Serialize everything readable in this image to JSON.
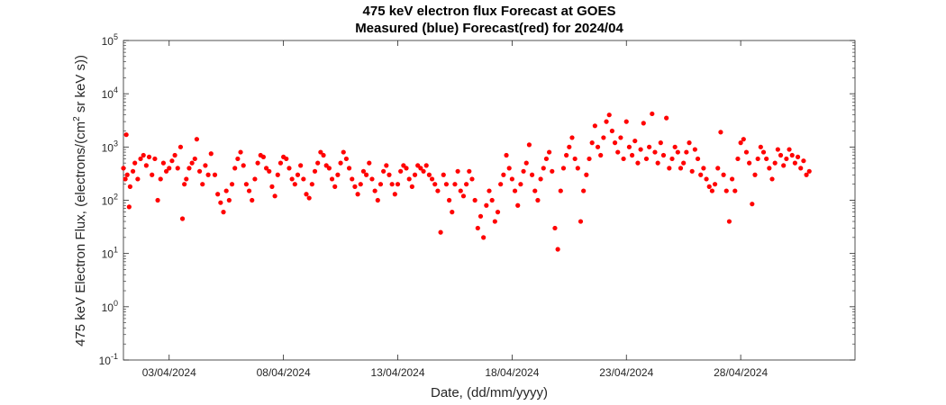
{
  "chart_data": {
    "type": "scatter",
    "title": "475 keV electron flux Forecast at GOES",
    "subtitle": "Measured (blue) Forecast(red) for 2024/04",
    "xlabel": "Date, (dd/mm/yyyy)",
    "ylabel_parts": [
      "475 keV Electron Flux, (electrons/(cm",
      "2",
      " sr keV s))"
    ],
    "yscale": "log",
    "ylim": [
      0.1,
      100000
    ],
    "xlim": [
      "2024-04-01",
      "2024-05-03"
    ],
    "x_ticks": [
      "2024-04-03",
      "2024-04-08",
      "2024-04-13",
      "2024-04-18",
      "2024-04-23",
      "2024-04-28"
    ],
    "x_tick_labels": [
      "03/04/2024",
      "08/04/2024",
      "13/04/2024",
      "18/04/2024",
      "23/04/2024",
      "28/04/2024"
    ],
    "y_ticks": [
      {
        "value": 0.1,
        "base": "10",
        "exp": "-1"
      },
      {
        "value": 1,
        "base": "10",
        "exp": "0"
      },
      {
        "value": 10,
        "base": "10",
        "exp": "1"
      },
      {
        "value": 100,
        "base": "10",
        "exp": "2"
      },
      {
        "value": 1000,
        "base": "10",
        "exp": "3"
      },
      {
        "value": 10000,
        "base": "10",
        "exp": "4"
      },
      {
        "value": 100000,
        "base": "10",
        "exp": "5"
      }
    ],
    "grid": false,
    "series": [
      {
        "color": "#ff0000",
        "points": [
          [
            "2024-04-01T00:00",
            400
          ],
          [
            "2024-04-01T02:00",
            250
          ],
          [
            "2024-04-01T03:00",
            1700
          ],
          [
            "2024-04-01T04:00",
            300
          ],
          [
            "2024-04-01T06:00",
            75
          ],
          [
            "2024-04-01T07:00",
            180
          ],
          [
            "2024-04-01T10:00",
            350
          ],
          [
            "2024-04-01T12:00",
            500
          ],
          [
            "2024-04-01T15:00",
            250
          ],
          [
            "2024-04-01T18:00",
            600
          ],
          [
            "2024-04-01T21:00",
            700
          ],
          [
            "2024-04-02T00:00",
            450
          ],
          [
            "2024-04-02T03:00",
            650
          ],
          [
            "2024-04-02T06:00",
            300
          ],
          [
            "2024-04-02T09:00",
            600
          ],
          [
            "2024-04-02T12:00",
            100
          ],
          [
            "2024-04-02T15:00",
            250
          ],
          [
            "2024-04-02T18:00",
            500
          ],
          [
            "2024-04-02T21:00",
            350
          ],
          [
            "2024-04-03T00:00",
            400
          ],
          [
            "2024-04-03T03:00",
            550
          ],
          [
            "2024-04-03T06:00",
            700
          ],
          [
            "2024-04-03T09:00",
            400
          ],
          [
            "2024-04-03T12:00",
            1000
          ],
          [
            "2024-04-03T14:00",
            45
          ],
          [
            "2024-04-03T16:00",
            200
          ],
          [
            "2024-04-03T18:00",
            250
          ],
          [
            "2024-04-03T21:00",
            400
          ],
          [
            "2024-04-04T00:00",
            500
          ],
          [
            "2024-04-04T03:00",
            600
          ],
          [
            "2024-04-04T05:00",
            1400
          ],
          [
            "2024-04-04T08:00",
            350
          ],
          [
            "2024-04-04T11:00",
            200
          ],
          [
            "2024-04-04T14:00",
            450
          ],
          [
            "2024-04-04T17:00",
            300
          ],
          [
            "2024-04-04T20:00",
            750
          ],
          [
            "2024-04-05T00:00",
            300
          ],
          [
            "2024-04-05T03:00",
            130
          ],
          [
            "2024-04-05T06:00",
            90
          ],
          [
            "2024-04-05T09:00",
            60
          ],
          [
            "2024-04-05T12:00",
            150
          ],
          [
            "2024-04-05T15:00",
            100
          ],
          [
            "2024-04-05T18:00",
            200
          ],
          [
            "2024-04-05T21:00",
            400
          ],
          [
            "2024-04-06T00:00",
            600
          ],
          [
            "2024-04-06T03:00",
            800
          ],
          [
            "2024-04-06T06:00",
            450
          ],
          [
            "2024-04-06T09:00",
            200
          ],
          [
            "2024-04-06T12:00",
            150
          ],
          [
            "2024-04-06T15:00",
            100
          ],
          [
            "2024-04-06T18:00",
            250
          ],
          [
            "2024-04-06T21:00",
            500
          ],
          [
            "2024-04-07T00:00",
            700
          ],
          [
            "2024-04-07T03:00",
            650
          ],
          [
            "2024-04-07T06:00",
            400
          ],
          [
            "2024-04-07T09:00",
            350
          ],
          [
            "2024-04-07T12:00",
            180
          ],
          [
            "2024-04-07T15:00",
            120
          ],
          [
            "2024-04-07T18:00",
            300
          ],
          [
            "2024-04-07T21:00",
            500
          ],
          [
            "2024-04-08T00:00",
            650
          ],
          [
            "2024-04-08T03:00",
            600
          ],
          [
            "2024-04-08T06:00",
            400
          ],
          [
            "2024-04-08T09:00",
            250
          ],
          [
            "2024-04-08T12:00",
            200
          ],
          [
            "2024-04-08T15:00",
            300
          ],
          [
            "2024-04-08T18:00",
            450
          ],
          [
            "2024-04-08T21:00",
            250
          ],
          [
            "2024-04-09T00:00",
            130
          ],
          [
            "2024-04-09T03:00",
            110
          ],
          [
            "2024-04-09T06:00",
            200
          ],
          [
            "2024-04-09T09:00",
            350
          ],
          [
            "2024-04-09T12:00",
            500
          ],
          [
            "2024-04-09T15:00",
            800
          ],
          [
            "2024-04-09T18:00",
            700
          ],
          [
            "2024-04-09T21:00",
            450
          ],
          [
            "2024-04-10T00:00",
            400
          ],
          [
            "2024-04-10T03:00",
            250
          ],
          [
            "2024-04-10T06:00",
            180
          ],
          [
            "2024-04-10T09:00",
            300
          ],
          [
            "2024-04-10T12:00",
            500
          ],
          [
            "2024-04-10T15:00",
            800
          ],
          [
            "2024-04-10T18:00",
            600
          ],
          [
            "2024-04-10T21:00",
            400
          ],
          [
            "2024-04-11T00:00",
            250
          ],
          [
            "2024-04-11T03:00",
            180
          ],
          [
            "2024-04-11T06:00",
            130
          ],
          [
            "2024-04-11T09:00",
            200
          ],
          [
            "2024-04-11T12:00",
            350
          ],
          [
            "2024-04-11T15:00",
            300
          ],
          [
            "2024-04-11T18:00",
            500
          ],
          [
            "2024-04-11T21:00",
            250
          ],
          [
            "2024-04-12T00:00",
            150
          ],
          [
            "2024-04-12T03:00",
            100
          ],
          [
            "2024-04-12T06:00",
            200
          ],
          [
            "2024-04-12T09:00",
            350
          ],
          [
            "2024-04-12T12:00",
            450
          ],
          [
            "2024-04-12T15:00",
            300
          ],
          [
            "2024-04-12T18:00",
            200
          ],
          [
            "2024-04-12T21:00",
            130
          ],
          [
            "2024-04-13T00:00",
            200
          ],
          [
            "2024-04-13T03:00",
            350
          ],
          [
            "2024-04-13T06:00",
            450
          ],
          [
            "2024-04-13T09:00",
            400
          ],
          [
            "2024-04-13T12:00",
            250
          ],
          [
            "2024-04-13T15:00",
            180
          ],
          [
            "2024-04-13T18:00",
            300
          ],
          [
            "2024-04-13T21:00",
            450
          ],
          [
            "2024-04-14T00:00",
            400
          ],
          [
            "2024-04-14T03:00",
            350
          ],
          [
            "2024-04-14T06:00",
            450
          ],
          [
            "2024-04-14T09:00",
            300
          ],
          [
            "2024-04-14T12:00",
            250
          ],
          [
            "2024-04-14T15:00",
            200
          ],
          [
            "2024-04-14T18:00",
            150
          ],
          [
            "2024-04-14T21:00",
            25
          ],
          [
            "2024-04-15T00:00",
            300
          ],
          [
            "2024-04-15T03:00",
            200
          ],
          [
            "2024-04-15T06:00",
            100
          ],
          [
            "2024-04-15T09:00",
            60
          ],
          [
            "2024-04-15T12:00",
            200
          ],
          [
            "2024-04-15T15:00",
            350
          ],
          [
            "2024-04-15T18:00",
            150
          ],
          [
            "2024-04-15T21:00",
            120
          ],
          [
            "2024-04-16T00:00",
            200
          ],
          [
            "2024-04-16T03:00",
            350
          ],
          [
            "2024-04-16T06:00",
            250
          ],
          [
            "2024-04-16T09:00",
            100
          ],
          [
            "2024-04-16T12:00",
            30
          ],
          [
            "2024-04-16T15:00",
            50
          ],
          [
            "2024-04-16T18:00",
            20
          ],
          [
            "2024-04-16T21:00",
            80
          ],
          [
            "2024-04-17T00:00",
            150
          ],
          [
            "2024-04-17T03:00",
            100
          ],
          [
            "2024-04-17T06:00",
            40
          ],
          [
            "2024-04-17T09:00",
            60
          ],
          [
            "2024-04-17T12:00",
            200
          ],
          [
            "2024-04-17T15:00",
            300
          ],
          [
            "2024-04-17T18:00",
            700
          ],
          [
            "2024-04-17T21:00",
            400
          ],
          [
            "2024-04-18T00:00",
            250
          ],
          [
            "2024-04-18T03:00",
            150
          ],
          [
            "2024-04-18T06:00",
            80
          ],
          [
            "2024-04-18T09:00",
            200
          ],
          [
            "2024-04-18T12:00",
            350
          ],
          [
            "2024-04-18T15:00",
            500
          ],
          [
            "2024-04-18T18:00",
            1100
          ],
          [
            "2024-04-18T21:00",
            300
          ],
          [
            "2024-04-19T00:00",
            150
          ],
          [
            "2024-04-19T03:00",
            100
          ],
          [
            "2024-04-19T06:00",
            250
          ],
          [
            "2024-04-19T09:00",
            400
          ],
          [
            "2024-04-19T12:00",
            600
          ],
          [
            "2024-04-19T15:00",
            800
          ],
          [
            "2024-04-19T18:00",
            350
          ],
          [
            "2024-04-19T21:00",
            30
          ],
          [
            "2024-04-20T00:00",
            12
          ],
          [
            "2024-04-20T03:00",
            150
          ],
          [
            "2024-04-20T06:00",
            400
          ],
          [
            "2024-04-20T09:00",
            700
          ],
          [
            "2024-04-20T12:00",
            1000
          ],
          [
            "2024-04-20T15:00",
            1500
          ],
          [
            "2024-04-20T18:00",
            600
          ],
          [
            "2024-04-20T21:00",
            400
          ],
          [
            "2024-04-21T00:00",
            40
          ],
          [
            "2024-04-21T03:00",
            150
          ],
          [
            "2024-04-21T06:00",
            300
          ],
          [
            "2024-04-21T09:00",
            600
          ],
          [
            "2024-04-21T12:00",
            1200
          ],
          [
            "2024-04-21T15:00",
            2500
          ],
          [
            "2024-04-21T18:00",
            1000
          ],
          [
            "2024-04-21T21:00",
            700
          ],
          [
            "2024-04-22T00:00",
            1500
          ],
          [
            "2024-04-22T03:00",
            3000
          ],
          [
            "2024-04-22T06:00",
            4000
          ],
          [
            "2024-04-22T09:00",
            2000
          ],
          [
            "2024-04-22T12:00",
            1200
          ],
          [
            "2024-04-22T15:00",
            800
          ],
          [
            "2024-04-22T18:00",
            1500
          ],
          [
            "2024-04-22T21:00",
            600
          ],
          [
            "2024-04-23T00:00",
            3000
          ],
          [
            "2024-04-23T03:00",
            1000
          ],
          [
            "2024-04-23T06:00",
            700
          ],
          [
            "2024-04-23T09:00",
            1300
          ],
          [
            "2024-04-23T12:00",
            500
          ],
          [
            "2024-04-23T15:00",
            900
          ],
          [
            "2024-04-23T18:00",
            2800
          ],
          [
            "2024-04-23T21:00",
            600
          ],
          [
            "2024-04-24T00:00",
            1000
          ],
          [
            "2024-04-24T03:00",
            4200
          ],
          [
            "2024-04-24T06:00",
            800
          ],
          [
            "2024-04-24T09:00",
            500
          ],
          [
            "2024-04-24T12:00",
            1200
          ],
          [
            "2024-04-24T15:00",
            700
          ],
          [
            "2024-04-24T18:00",
            3500
          ],
          [
            "2024-04-24T21:00",
            400
          ],
          [
            "2024-04-25T00:00",
            600
          ],
          [
            "2024-04-25T03:00",
            1000
          ],
          [
            "2024-04-25T06:00",
            800
          ],
          [
            "2024-04-25T09:00",
            400
          ],
          [
            "2024-04-25T12:00",
            500
          ],
          [
            "2024-04-25T15:00",
            800
          ],
          [
            "2024-04-25T18:00",
            1200
          ],
          [
            "2024-04-25T21:00",
            350
          ],
          [
            "2024-04-26T00:00",
            900
          ],
          [
            "2024-04-26T03:00",
            600
          ],
          [
            "2024-04-26T06:00",
            300
          ],
          [
            "2024-04-26T09:00",
            400
          ],
          [
            "2024-04-26T12:00",
            250
          ],
          [
            "2024-04-26T15:00",
            180
          ],
          [
            "2024-04-26T18:00",
            150
          ],
          [
            "2024-04-26T21:00",
            200
          ],
          [
            "2024-04-27T00:00",
            400
          ],
          [
            "2024-04-27T03:00",
            1900
          ],
          [
            "2024-04-27T06:00",
            300
          ],
          [
            "2024-04-27T09:00",
            150
          ],
          [
            "2024-04-27T12:00",
            40
          ],
          [
            "2024-04-27T15:00",
            250
          ],
          [
            "2024-04-27T18:00",
            150
          ],
          [
            "2024-04-27T21:00",
            600
          ],
          [
            "2024-04-28T00:00",
            1200
          ],
          [
            "2024-04-28T03:00",
            1400
          ],
          [
            "2024-04-28T06:00",
            800
          ],
          [
            "2024-04-28T09:00",
            500
          ],
          [
            "2024-04-28T12:00",
            85
          ],
          [
            "2024-04-28T15:00",
            300
          ],
          [
            "2024-04-28T18:00",
            600
          ],
          [
            "2024-04-28T21:00",
            1000
          ],
          [
            "2024-04-29T00:00",
            800
          ],
          [
            "2024-04-29T03:00",
            600
          ],
          [
            "2024-04-29T06:00",
            400
          ],
          [
            "2024-04-29T09:00",
            250
          ],
          [
            "2024-04-29T12:00",
            500
          ],
          [
            "2024-04-29T15:00",
            900
          ],
          [
            "2024-04-29T18:00",
            700
          ],
          [
            "2024-04-29T21:00",
            450
          ],
          [
            "2024-04-30T00:00",
            600
          ],
          [
            "2024-04-30T03:00",
            900
          ],
          [
            "2024-04-30T06:00",
            700
          ],
          [
            "2024-04-30T09:00",
            500
          ],
          [
            "2024-04-30T12:00",
            650
          ],
          [
            "2024-04-30T15:00",
            400
          ],
          [
            "2024-04-30T18:00",
            550
          ],
          [
            "2024-04-30T21:00",
            300
          ],
          [
            "2024-05-01T00:00",
            350
          ]
        ]
      }
    ]
  }
}
